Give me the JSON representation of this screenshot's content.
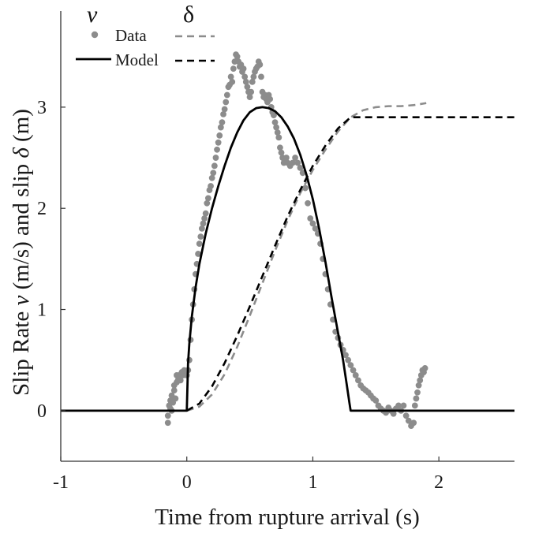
{
  "chart_data": {
    "type": "line",
    "xlabel": "Time from rupture arrival (s)",
    "ylabel": {
      "part1": "Slip Rate ",
      "v_symbol": "v",
      "part2": " (m/s) and slip ",
      "delta_symbol": "δ",
      "part3": " (m)"
    },
    "xlim": [
      -1,
      2.6
    ],
    "ylim": [
      -0.5,
      3.95
    ],
    "xticks": [
      -1,
      0,
      1,
      2
    ],
    "yticks": [
      0,
      1,
      2,
      3
    ],
    "xtick_labels": [
      "-1",
      "0",
      "1",
      "2"
    ],
    "ytick_labels": [
      "0",
      "1",
      "2",
      "3"
    ],
    "grid": false,
    "legend": {
      "placement": "top-left",
      "col_headers": [
        "v",
        "δ"
      ],
      "rows": [
        {
          "label": "Data",
          "v_style": "dots",
          "delta_style": "dashed"
        },
        {
          "label": "Model",
          "v_style": "solid",
          "delta_style": "dashed"
        }
      ]
    },
    "colors": {
      "data": "#8c8c8c",
      "model": "#000000"
    },
    "series": [
      {
        "name": "Data",
        "quantity": "v",
        "style": "dots",
        "points": [
          [
            -0.15,
            -0.12
          ],
          [
            -0.15,
            -0.05
          ],
          [
            -0.14,
            0.05
          ],
          [
            -0.13,
            0.02
          ],
          [
            -0.13,
            0.1
          ],
          [
            -0.12,
            0.15
          ],
          [
            -0.12,
            0.0
          ],
          [
            -0.11,
            0.08
          ],
          [
            -0.1,
            0.2
          ],
          [
            -0.1,
            0.25
          ],
          [
            -0.09,
            0.12
          ],
          [
            -0.08,
            0.28
          ],
          [
            -0.08,
            0.35
          ],
          [
            -0.07,
            0.3
          ],
          [
            -0.06,
            0.35
          ],
          [
            -0.05,
            0.3
          ],
          [
            -0.04,
            0.38
          ],
          [
            -0.03,
            0.35
          ],
          [
            -0.02,
            0.4
          ],
          [
            -0.01,
            0.38
          ],
          [
            0.0,
            0.35
          ],
          [
            0.01,
            0.4
          ],
          [
            0.02,
            0.5
          ],
          [
            0.03,
            0.7
          ],
          [
            0.04,
            0.9
          ],
          [
            0.05,
            1.05
          ],
          [
            0.06,
            1.2
          ],
          [
            0.07,
            1.35
          ],
          [
            0.08,
            1.45
          ],
          [
            0.09,
            1.55
          ],
          [
            0.1,
            1.65
          ],
          [
            0.11,
            1.72
          ],
          [
            0.12,
            1.8
          ],
          [
            0.13,
            1.85
          ],
          [
            0.14,
            1.9
          ],
          [
            0.15,
            1.95
          ],
          [
            0.16,
            2.05
          ],
          [
            0.17,
            2.1
          ],
          [
            0.18,
            2.18
          ],
          [
            0.19,
            2.22
          ],
          [
            0.2,
            2.3
          ],
          [
            0.21,
            2.35
          ],
          [
            0.22,
            2.42
          ],
          [
            0.23,
            2.5
          ],
          [
            0.24,
            2.58
          ],
          [
            0.25,
            2.65
          ],
          [
            0.26,
            2.72
          ],
          [
            0.27,
            2.8
          ],
          [
            0.28,
            2.85
          ],
          [
            0.29,
            2.93
          ],
          [
            0.3,
            2.98
          ],
          [
            0.31,
            3.05
          ],
          [
            0.32,
            3.12
          ],
          [
            0.33,
            3.2
          ],
          [
            0.34,
            3.22
          ],
          [
            0.35,
            3.3
          ],
          [
            0.36,
            3.25
          ],
          [
            0.37,
            3.38
          ],
          [
            0.38,
            3.45
          ],
          [
            0.39,
            3.52
          ],
          [
            0.4,
            3.5
          ],
          [
            0.41,
            3.45
          ],
          [
            0.42,
            3.4
          ],
          [
            0.43,
            3.42
          ],
          [
            0.44,
            3.35
          ],
          [
            0.45,
            3.38
          ],
          [
            0.46,
            3.3
          ],
          [
            0.47,
            3.25
          ],
          [
            0.48,
            3.2
          ],
          [
            0.49,
            3.15
          ],
          [
            0.5,
            3.1
          ],
          [
            0.51,
            3.15
          ],
          [
            0.52,
            3.25
          ],
          [
            0.53,
            3.3
          ],
          [
            0.54,
            3.35
          ],
          [
            0.55,
            3.38
          ],
          [
            0.56,
            3.4
          ],
          [
            0.57,
            3.45
          ],
          [
            0.58,
            3.42
          ],
          [
            0.59,
            3.3
          ],
          [
            0.6,
            3.15
          ],
          [
            0.61,
            3.1
          ],
          [
            0.62,
            3.12
          ],
          [
            0.63,
            3.08
          ],
          [
            0.64,
            3.05
          ],
          [
            0.65,
            3.12
          ],
          [
            0.66,
            3.08
          ],
          [
            0.67,
            3.0
          ],
          [
            0.68,
            2.95
          ],
          [
            0.69,
            2.92
          ],
          [
            0.7,
            2.85
          ],
          [
            0.71,
            2.8
          ],
          [
            0.72,
            2.75
          ],
          [
            0.73,
            2.7
          ],
          [
            0.74,
            2.6
          ],
          [
            0.75,
            2.55
          ],
          [
            0.76,
            2.5
          ],
          [
            0.77,
            2.45
          ],
          [
            0.78,
            2.48
          ],
          [
            0.79,
            2.5
          ],
          [
            0.8,
            2.45
          ],
          [
            0.82,
            2.42
          ],
          [
            0.84,
            2.45
          ],
          [
            0.86,
            2.5
          ],
          [
            0.88,
            2.45
          ],
          [
            0.9,
            2.4
          ],
          [
            0.92,
            2.35
          ],
          [
            0.94,
            2.2
          ],
          [
            0.96,
            2.05
          ],
          [
            0.98,
            1.9
          ],
          [
            1.0,
            1.85
          ],
          [
            1.02,
            1.8
          ],
          [
            1.04,
            1.75
          ],
          [
            1.06,
            1.65
          ],
          [
            1.08,
            1.5
          ],
          [
            1.1,
            1.35
          ],
          [
            1.12,
            1.2
          ],
          [
            1.14,
            1.05
          ],
          [
            1.16,
            0.9
          ],
          [
            1.18,
            0.78
          ],
          [
            1.2,
            0.72
          ],
          [
            1.22,
            0.65
          ],
          [
            1.24,
            0.6
          ],
          [
            1.26,
            0.55
          ],
          [
            1.28,
            0.5
          ],
          [
            1.3,
            0.45
          ],
          [
            1.32,
            0.4
          ],
          [
            1.34,
            0.35
          ],
          [
            1.36,
            0.3
          ],
          [
            1.38,
            0.25
          ],
          [
            1.4,
            0.22
          ],
          [
            1.42,
            0.2
          ],
          [
            1.44,
            0.18
          ],
          [
            1.46,
            0.15
          ],
          [
            1.48,
            0.12
          ],
          [
            1.5,
            0.1
          ],
          [
            1.52,
            0.05
          ],
          [
            1.54,
            0.02
          ],
          [
            1.56,
            0.0
          ],
          [
            1.58,
            -0.02
          ],
          [
            1.6,
            0.03
          ],
          [
            1.62,
            0.0
          ],
          [
            1.64,
            -0.03
          ],
          [
            1.66,
            0.02
          ],
          [
            1.68,
            0.05
          ],
          [
            1.7,
            0.0
          ],
          [
            1.72,
            0.05
          ],
          [
            1.74,
            -0.05
          ],
          [
            1.76,
            -0.1
          ],
          [
            1.78,
            -0.15
          ],
          [
            1.8,
            -0.12
          ],
          [
            1.81,
            0.05
          ],
          [
            1.82,
            0.12
          ],
          [
            1.83,
            0.18
          ],
          [
            1.84,
            0.25
          ],
          [
            1.85,
            0.3
          ],
          [
            1.86,
            0.35
          ],
          [
            1.87,
            0.4
          ],
          [
            1.88,
            0.38
          ],
          [
            1.89,
            0.42
          ]
        ]
      },
      {
        "name": "Data",
        "quantity": "δ",
        "style": "dashed",
        "points": [
          [
            0.0,
            0.0
          ],
          [
            0.1,
            0.04
          ],
          [
            0.2,
            0.16
          ],
          [
            0.3,
            0.36
          ],
          [
            0.4,
            0.63
          ],
          [
            0.5,
            0.94
          ],
          [
            0.6,
            1.26
          ],
          [
            0.7,
            1.58
          ],
          [
            0.8,
            1.88
          ],
          [
            0.9,
            2.15
          ],
          [
            1.0,
            2.38
          ],
          [
            1.1,
            2.58
          ],
          [
            1.2,
            2.76
          ],
          [
            1.3,
            2.9
          ],
          [
            1.4,
            2.97
          ],
          [
            1.5,
            3.0
          ],
          [
            1.6,
            3.01
          ],
          [
            1.7,
            3.01
          ],
          [
            1.8,
            3.02
          ],
          [
            1.9,
            3.04
          ]
        ]
      },
      {
        "name": "Model",
        "quantity": "v",
        "style": "solid",
        "points": [
          [
            -1.0,
            0
          ],
          [
            0.0,
            0
          ],
          [
            0.0,
            0.0
          ],
          [
            0.01,
            0.47
          ],
          [
            0.02,
            0.66
          ],
          [
            0.04,
            0.93
          ],
          [
            0.07,
            1.22
          ],
          [
            0.1,
            1.45
          ],
          [
            0.15,
            1.75
          ],
          [
            0.2,
            2.0
          ],
          [
            0.25,
            2.22
          ],
          [
            0.3,
            2.42
          ],
          [
            0.35,
            2.6
          ],
          [
            0.4,
            2.75
          ],
          [
            0.45,
            2.87
          ],
          [
            0.5,
            2.95
          ],
          [
            0.55,
            2.99
          ],
          [
            0.6,
            3.0
          ],
          [
            0.65,
            2.99
          ],
          [
            0.7,
            2.96
          ],
          [
            0.75,
            2.9
          ],
          [
            0.8,
            2.81
          ],
          [
            0.85,
            2.69
          ],
          [
            0.9,
            2.53
          ],
          [
            0.95,
            2.33
          ],
          [
            1.0,
            2.09
          ],
          [
            1.05,
            1.8
          ],
          [
            1.1,
            1.47
          ],
          [
            1.15,
            1.11
          ],
          [
            1.2,
            0.77
          ],
          [
            1.24,
            0.5
          ],
          [
            1.27,
            0.25
          ],
          [
            1.29,
            0.08
          ],
          [
            1.3,
            0.0
          ],
          [
            2.6,
            0
          ]
        ]
      },
      {
        "name": "Model",
        "quantity": "δ",
        "style": "dashed",
        "points": [
          [
            0.0,
            0.0
          ],
          [
            0.1,
            0.07
          ],
          [
            0.2,
            0.24
          ],
          [
            0.3,
            0.47
          ],
          [
            0.4,
            0.74
          ],
          [
            0.5,
            1.03
          ],
          [
            0.6,
            1.33
          ],
          [
            0.7,
            1.63
          ],
          [
            0.8,
            1.92
          ],
          [
            0.9,
            2.18
          ],
          [
            1.0,
            2.42
          ],
          [
            1.1,
            2.62
          ],
          [
            1.2,
            2.79
          ],
          [
            1.3,
            2.9
          ],
          [
            2.6,
            2.9
          ]
        ]
      }
    ]
  }
}
